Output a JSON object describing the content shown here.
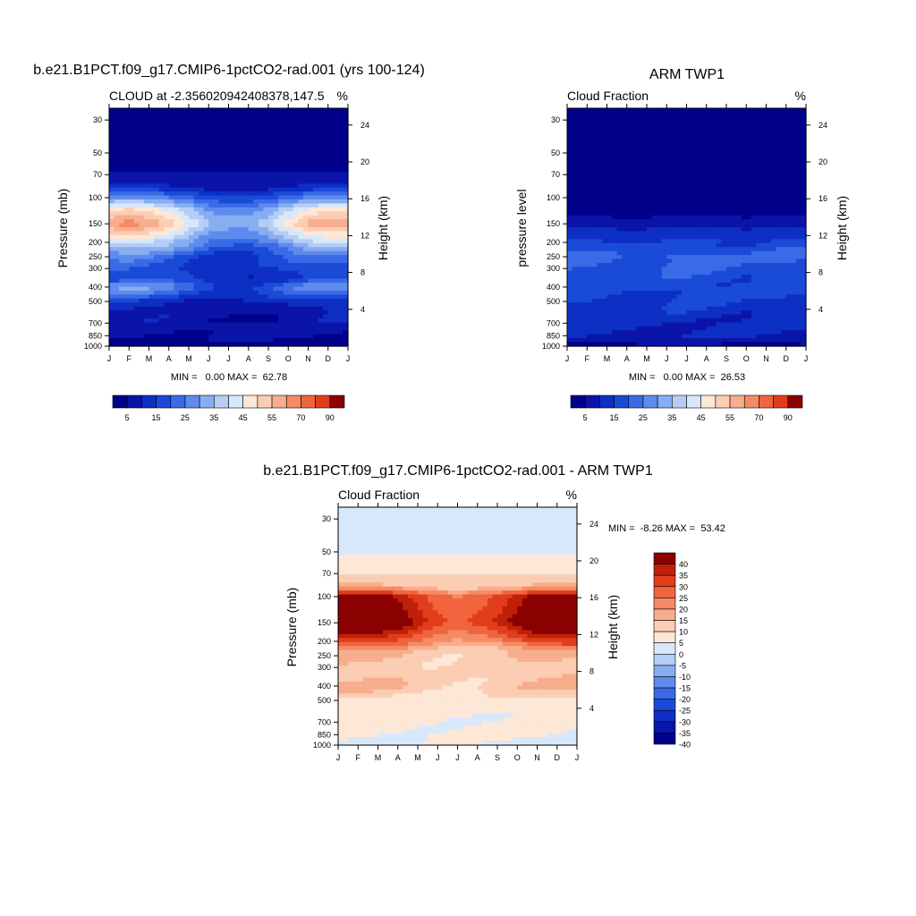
{
  "colors": {
    "diverging": [
      "#00008b",
      "#0a14a8",
      "#0d2fc4",
      "#1a4ad8",
      "#3a6ae6",
      "#5d8bee",
      "#88aef2",
      "#b6cdf6",
      "#d8e8fb",
      "#fde7d6",
      "#fbcdb3",
      "#f8ad8c",
      "#f58b65",
      "#f0653e",
      "#e13d1c",
      "#c02008",
      "#8b0000"
    ]
  },
  "months": [
    "J",
    "F",
    "M",
    "A",
    "M",
    "J",
    "J",
    "A",
    "S",
    "O",
    "N",
    "D",
    "J"
  ],
  "pressure_ticks": [
    "30",
    "50",
    "70",
    "100",
    "150",
    "200",
    "250",
    "300",
    "400",
    "500",
    "700",
    "850",
    "1000"
  ],
  "height_ticks": [
    "24",
    "20",
    "16",
    "12",
    "8",
    "4"
  ],
  "model_label": "b.e21.B1PCT.f09_g17.CMIP6-1pctCO2-rad.001 (yrs 100-124)",
  "obs_label": "ARM TWP1",
  "diff_label": "b.e21.B1PCT.f09_g17.CMIP6-1pctCO2-rad.001 - ARM TWP1",
  "chart_data": [
    {
      "type": "heatmap",
      "id": "model",
      "title": "b.e21.B1PCT.f09_g17.CMIP6-1pctCO2-rad.001 (yrs 100-124)",
      "subtitle_left": "CLOUD at -2.356020942408378,147.5",
      "subtitle_right": "%",
      "ylabel": "Pressure (mb)",
      "ylabel_right": "Height (km)",
      "x": [
        "J",
        "F",
        "M",
        "A",
        "M",
        "J",
        "J",
        "A",
        "S",
        "O",
        "N",
        "D",
        "J"
      ],
      "y_pressure": [
        30,
        50,
        70,
        100,
        150,
        200,
        250,
        300,
        400,
        500,
        700,
        850,
        1000
      ],
      "y_height": [
        24,
        20,
        16,
        12,
        8,
        4
      ],
      "min_label": "MIN =   0.00 MAX =  62.78",
      "colorbar_labels": [
        "5",
        "15",
        "25",
        "35",
        "45",
        "55",
        "70",
        "90"
      ],
      "colorbar_levels": [
        5,
        10,
        15,
        20,
        25,
        30,
        35,
        40,
        45,
        50,
        55,
        60,
        70,
        80,
        90
      ],
      "profile": [
        [
          30,
          0
        ],
        [
          50,
          1
        ],
        [
          60,
          3
        ],
        [
          70,
          6
        ],
        [
          85,
          12
        ],
        [
          100,
          28
        ],
        [
          120,
          48
        ],
        [
          150,
          60
        ],
        [
          200,
          40
        ],
        [
          250,
          24
        ],
        [
          300,
          20
        ],
        [
          350,
          18
        ],
        [
          400,
          30
        ],
        [
          450,
          22
        ],
        [
          500,
          14
        ],
        [
          600,
          10
        ],
        [
          700,
          8
        ],
        [
          850,
          6
        ],
        [
          1000,
          2
        ]
      ],
      "seasonal": [
        1.0,
        1.05,
        1.0,
        0.9,
        0.75,
        0.6,
        0.55,
        0.55,
        0.65,
        0.8,
        0.95,
        1.0,
        1.0
      ]
    },
    {
      "type": "heatmap",
      "id": "obs",
      "title": "ARM TWP1",
      "subtitle_left": "Cloud Fraction",
      "subtitle_right": "%",
      "ylabel": "pressure level",
      "ylabel_right": "Height (km)",
      "x": [
        "J",
        "F",
        "M",
        "A",
        "M",
        "J",
        "J",
        "A",
        "S",
        "O",
        "N",
        "D",
        "J"
      ],
      "y_pressure": [
        30,
        50,
        70,
        100,
        150,
        200,
        250,
        300,
        400,
        500,
        700,
        850,
        1000
      ],
      "y_height": [
        24,
        20,
        16,
        12,
        8,
        4
      ],
      "min_label": "MIN =   0.00 MAX =  26.53",
      "colorbar_labels": [
        "5",
        "15",
        "25",
        "35",
        "45",
        "55",
        "70",
        "90"
      ],
      "colorbar_levels": [
        5,
        10,
        15,
        20,
        25,
        30,
        35,
        40,
        45,
        50,
        55,
        60,
        70,
        80,
        90
      ],
      "profile": [
        [
          30,
          0
        ],
        [
          100,
          1
        ],
        [
          130,
          4
        ],
        [
          150,
          9
        ],
        [
          200,
          16
        ],
        [
          250,
          22
        ],
        [
          300,
          20
        ],
        [
          400,
          17
        ],
        [
          500,
          15
        ],
        [
          600,
          13
        ],
        [
          700,
          11
        ],
        [
          850,
          10
        ],
        [
          1000,
          4
        ]
      ],
      "seasonal": [
        1.0,
        1.0,
        0.95,
        0.85,
        0.9,
        1.0,
        1.05,
        1.0,
        0.95,
        0.9,
        0.95,
        1.0,
        1.0
      ]
    },
    {
      "type": "heatmap",
      "id": "diff",
      "title": "b.e21.B1PCT.f09_g17.CMIP6-1pctCO2-rad.001 - ARM TWP1",
      "subtitle_left": "Cloud Fraction",
      "subtitle_right": "%",
      "ylabel": "Pressure (mb)",
      "ylabel_right": "Height (km)",
      "x": [
        "J",
        "F",
        "M",
        "A",
        "M",
        "J",
        "J",
        "A",
        "S",
        "O",
        "N",
        "D",
        "J"
      ],
      "y_pressure": [
        30,
        50,
        70,
        100,
        150,
        200,
        250,
        300,
        400,
        500,
        700,
        850,
        1000
      ],
      "y_height": [
        24,
        20,
        16,
        12,
        8,
        4
      ],
      "min_label": "MIN =  -8.26 MAX =  53.42",
      "colorbar_labels": [
        "40",
        "35",
        "30",
        "25",
        "20",
        "15",
        "10",
        "5",
        "0",
        "-5",
        "-10",
        "-15",
        "-20",
        "-25",
        "-30",
        "-35",
        "-40"
      ],
      "colorbar_levels": [
        -40,
        -35,
        -30,
        -25,
        -20,
        -15,
        -10,
        -5,
        0,
        5,
        10,
        15,
        20,
        25,
        30,
        35,
        40
      ],
      "profile": [
        [
          30,
          -2
        ],
        [
          50,
          -1
        ],
        [
          55,
          1
        ],
        [
          70,
          3
        ],
        [
          85,
          12
        ],
        [
          100,
          40
        ],
        [
          150,
          48
        ],
        [
          200,
          28
        ],
        [
          230,
          14
        ],
        [
          300,
          8
        ],
        [
          400,
          12
        ],
        [
          450,
          8
        ],
        [
          500,
          3
        ],
        [
          700,
          1
        ],
        [
          850,
          1
        ],
        [
          1000,
          -1
        ]
      ],
      "seasonal": [
        1.0,
        1.0,
        0.95,
        0.85,
        0.7,
        0.55,
        0.5,
        0.55,
        0.65,
        0.8,
        0.95,
        1.0,
        1.0
      ]
    }
  ]
}
